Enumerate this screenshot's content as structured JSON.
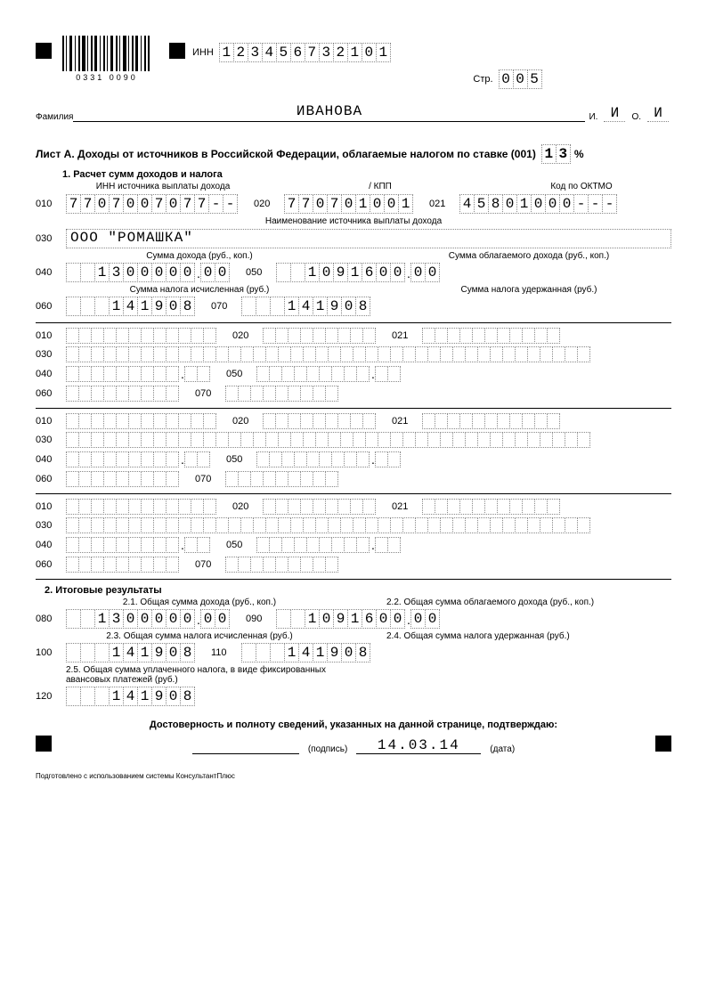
{
  "header": {
    "barcode_text": "0331 0090",
    "inn_label": "ИНН",
    "inn": [
      "1",
      "2",
      "3",
      "4",
      "5",
      "6",
      "7",
      "3",
      "2",
      "1",
      "0",
      "1"
    ],
    "page_label": "Стр.",
    "page": [
      "0",
      "0",
      "5"
    ]
  },
  "person": {
    "surname_label": "Фамилия",
    "surname": "ИВАНОВА",
    "i_label": "И.",
    "o_label": "О.",
    "initial_i": "И",
    "initial_o": "И"
  },
  "title": {
    "main": "Лист А. Доходы от источников в Российской Федерации, облагаемые налогом по ставке (001)",
    "rate": [
      "1",
      "3"
    ],
    "pct": "%"
  },
  "section1_label": "1. Расчет сумм доходов и налога",
  "col_labels": {
    "inn_src": "ИНН источника выплаты дохода",
    "kpp": "/ КПП",
    "oktmo": "Код по ОКТМО",
    "name_src": "Наименование источника выплаты дохода",
    "income": "Сумма дохода (руб., коп.)",
    "taxable": "Сумма облагаемого дохода (руб., коп.)",
    "tax_calc": "Сумма налога исчисленная (руб.)",
    "tax_held": "Сумма налога удержанная (руб.)"
  },
  "codes": {
    "c010": "010",
    "c020": "020",
    "c021": "021",
    "c030": "030",
    "c040": "040",
    "c050": "050",
    "c060": "060",
    "c070": "070",
    "c080": "080",
    "c090": "090",
    "c100": "100",
    "c110": "110",
    "c120": "120"
  },
  "block1": {
    "inn": [
      "7",
      "7",
      "0",
      "7",
      "0",
      "0",
      "7",
      "0",
      "7",
      "7",
      "-",
      "-"
    ],
    "kpp": [
      "7",
      "7",
      "0",
      "7",
      "0",
      "1",
      "0",
      "0",
      "1"
    ],
    "oktmo": [
      "4",
      "5",
      "8",
      "0",
      "1",
      "0",
      "0",
      "0",
      "-",
      "-",
      "-"
    ],
    "name": "ООО \"РОМАШКА\"",
    "income_rub": [
      "",
      "",
      "1",
      "3",
      "0",
      "0",
      "0",
      "0",
      "0"
    ],
    "income_kop": [
      "0",
      "0"
    ],
    "taxable_rub": [
      "",
      "",
      "1",
      "0",
      "9",
      "1",
      "6",
      "0",
      "0"
    ],
    "taxable_kop": [
      "0",
      "0"
    ],
    "tax_calc": [
      "",
      "",
      "",
      "1",
      "4",
      "1",
      "9",
      "0",
      "8"
    ],
    "tax_held": [
      "",
      "",
      "",
      "1",
      "4",
      "1",
      "9",
      "0",
      "8"
    ]
  },
  "section2_label": "2. Итоговые результаты",
  "totals_labels": {
    "t21": "2.1. Общая сумма дохода (руб., коп.)",
    "t22": "2.2. Общая сумма облагаемого дохода (руб., коп.)",
    "t23": "2.3. Общая сумма налога исчисленная (руб.)",
    "t24": "2.4. Общая сумма налога удержанная (руб.)",
    "t25": "2.5. Общая сумма уплаченного налога, в виде фиксированных авансовых платежей (руб.)"
  },
  "totals": {
    "income_rub": [
      "",
      "",
      "1",
      "3",
      "0",
      "0",
      "0",
      "0",
      "0"
    ],
    "income_kop": [
      "0",
      "0"
    ],
    "taxable_rub": [
      "",
      "",
      "1",
      "0",
      "9",
      "1",
      "6",
      "0",
      "0"
    ],
    "taxable_kop": [
      "0",
      "0"
    ],
    "tax_calc": [
      "",
      "",
      "",
      "1",
      "4",
      "1",
      "9",
      "0",
      "8"
    ],
    "tax_held": [
      "",
      "",
      "",
      "1",
      "4",
      "1",
      "9",
      "0",
      "8"
    ],
    "tax_paid": [
      "",
      "",
      "",
      "1",
      "4",
      "1",
      "9",
      "0",
      "8"
    ]
  },
  "footer": {
    "confirm": "Достоверность и полноту сведений, указанных на данной странице, подтверждаю:",
    "sign_label": "(подпись)",
    "date_label": "(дата)",
    "date": "14.03.14",
    "credit": "Подготовлено с использованием системы КонсультантПлюс"
  }
}
